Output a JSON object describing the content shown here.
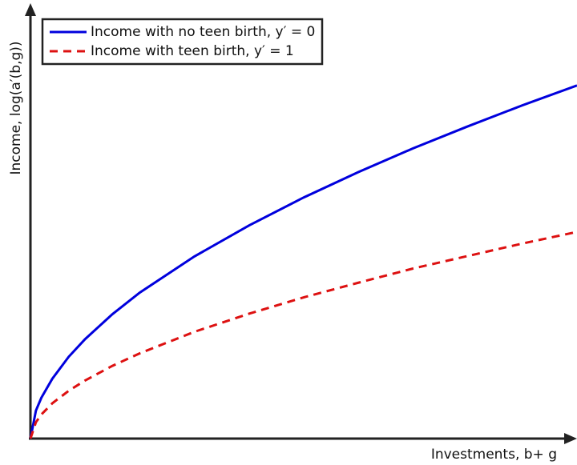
{
  "chart_data": {
    "type": "line",
    "xlabel": "Investments, b+ g",
    "ylabel": "Income, log(a′(b,g))",
    "x": [
      0,
      1,
      2,
      4,
      7,
      10,
      15,
      20,
      30,
      40,
      50,
      60,
      70,
      80,
      90,
      100
    ],
    "series": [
      {
        "name": "Income with no teen birth, y′ = 0",
        "color": "#0000dd",
        "linestyle": "solid",
        "values": [
          0,
          6.5,
          9.5,
          13.9,
          19.0,
          23.1,
          28.9,
          33.9,
          42.3,
          49.5,
          56.0,
          61.9,
          67.4,
          72.5,
          77.4,
          82
        ]
      },
      {
        "name": "Income with teen birth, y′ = 1",
        "color": "#dd1111",
        "linestyle": "dashed",
        "values": [
          0,
          3.8,
          5.6,
          8.2,
          11.1,
          13.5,
          16.9,
          19.8,
          24.8,
          29.0,
          32.8,
          36.2,
          39.5,
          42.4,
          45.3,
          48
        ]
      }
    ],
    "xlim": [
      0,
      100
    ],
    "ylim": [
      0,
      100
    ],
    "legend": "upper left"
  }
}
